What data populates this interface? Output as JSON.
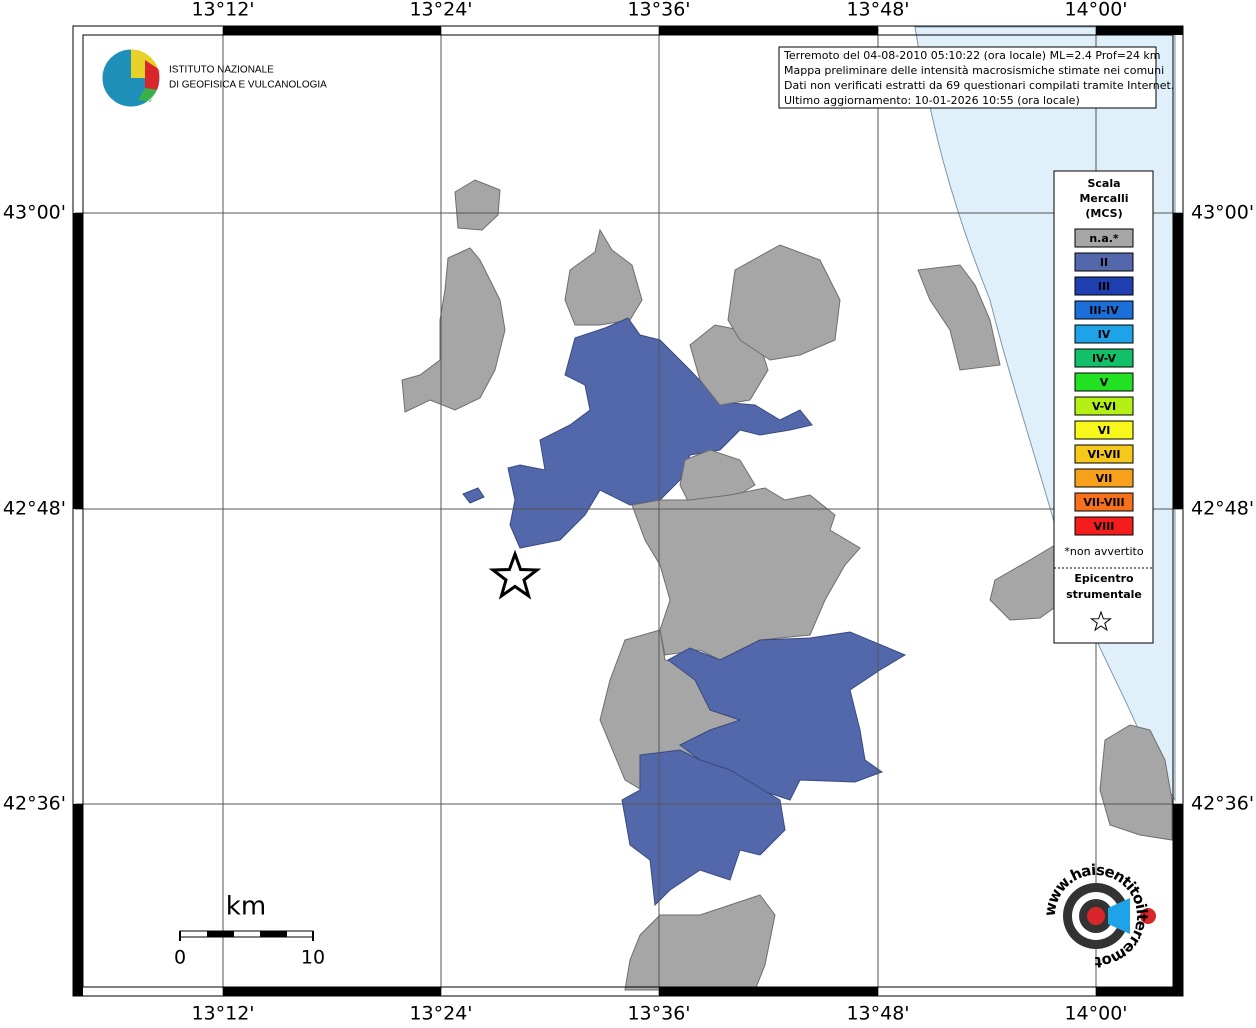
{
  "graticule": {
    "lon_labels": [
      "13°12'",
      "13°24'",
      "13°36'",
      "13°48'",
      "14°00'"
    ],
    "lat_labels": [
      "43°00'",
      "42°48'",
      "42°36'"
    ]
  },
  "logo": {
    "line1": "ISTITUTO NAZIONALE",
    "line2": "DI GEOFISICA E VULCANOLOGIA"
  },
  "info": [
    "Terremoto del 04-08-2010 05:10:22 (ora locale) ML=2.4 Prof=24 km",
    "Mappa preliminare delle intensità macrosismiche stimate nei comuni",
    "Dati non verificati estratti da 69 questionari compilati tramite Internet.",
    "Ultimo aggiornamento: 10-01-2026 10:55 (ora locale)"
  ],
  "legend": {
    "title": [
      "Scala",
      "Mercalli",
      "(MCS)"
    ],
    "items": [
      {
        "label": "n.a.*",
        "color": "#a6a6a6"
      },
      {
        "label": "II",
        "color": "#5268aa"
      },
      {
        "label": "III",
        "color": "#1f3fb0"
      },
      {
        "label": "III-IV",
        "color": "#1c6fd8"
      },
      {
        "label": "IV",
        "color": "#1fa3e8"
      },
      {
        "label": "IV-V",
        "color": "#12c06a"
      },
      {
        "label": "V",
        "color": "#22e022"
      },
      {
        "label": "V-VI",
        "color": "#b4f016"
      },
      {
        "label": "VI",
        "color": "#f7f71c"
      },
      {
        "label": "VI-VII",
        "color": "#f7c81c"
      },
      {
        "label": "VII",
        "color": "#f7a01c"
      },
      {
        "label": "VII-VIII",
        "color": "#f7701c"
      },
      {
        "label": "VIII",
        "color": "#f41c1c"
      }
    ],
    "note": "*non avvertito",
    "epicenter": [
      "Epicentro",
      "strumentale"
    ]
  },
  "scale_bar": {
    "unit": "km",
    "start": "0",
    "end": "10"
  },
  "badge": "www.haisentitoilterremoto.it"
}
